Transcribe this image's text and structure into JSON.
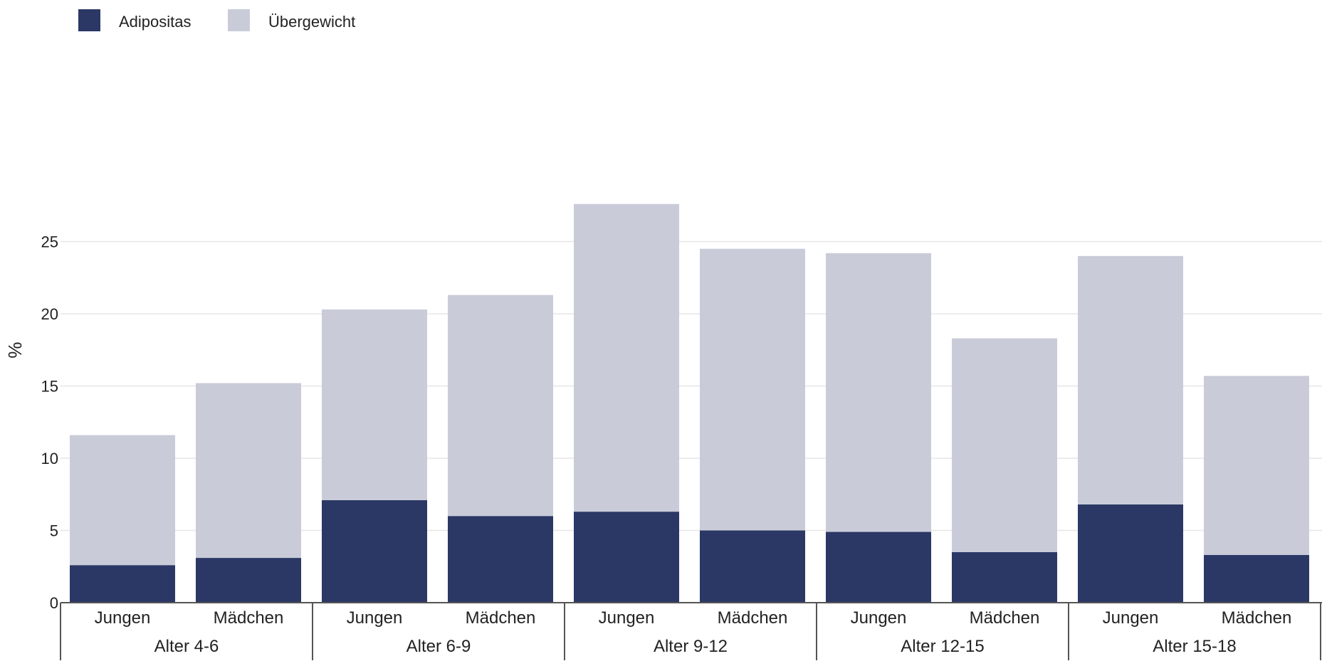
{
  "chart_data": {
    "type": "bar",
    "stacked": true,
    "ylabel": "%",
    "ylim": [
      0,
      28
    ],
    "yticks": [
      0,
      5,
      10,
      15,
      20,
      25
    ],
    "grid": true,
    "legend": "top-left",
    "groups": [
      {
        "label": "Alter 4-6",
        "categories": [
          "Jungen",
          "Mädchen"
        ]
      },
      {
        "label": "Alter 6-9",
        "categories": [
          "Jungen",
          "Mädchen"
        ]
      },
      {
        "label": "Alter 9-12",
        "categories": [
          "Jungen",
          "Mädchen"
        ]
      },
      {
        "label": "Alter 12-15",
        "categories": [
          "Jungen",
          "Mädchen"
        ]
      },
      {
        "label": "Alter 15-18",
        "categories": [
          "Jungen",
          "Mädchen"
        ]
      }
    ],
    "series": [
      {
        "name": "Adipositas",
        "color": "#2b3866",
        "values": [
          2.6,
          3.1,
          7.1,
          6.0,
          6.3,
          5.0,
          4.9,
          3.5,
          6.8,
          3.3
        ]
      },
      {
        "name": "Übergewicht",
        "color": "#c9ccd8",
        "values": [
          9.0,
          12.1,
          13.2,
          15.3,
          21.3,
          19.5,
          19.3,
          14.8,
          17.2,
          12.4
        ]
      }
    ]
  }
}
